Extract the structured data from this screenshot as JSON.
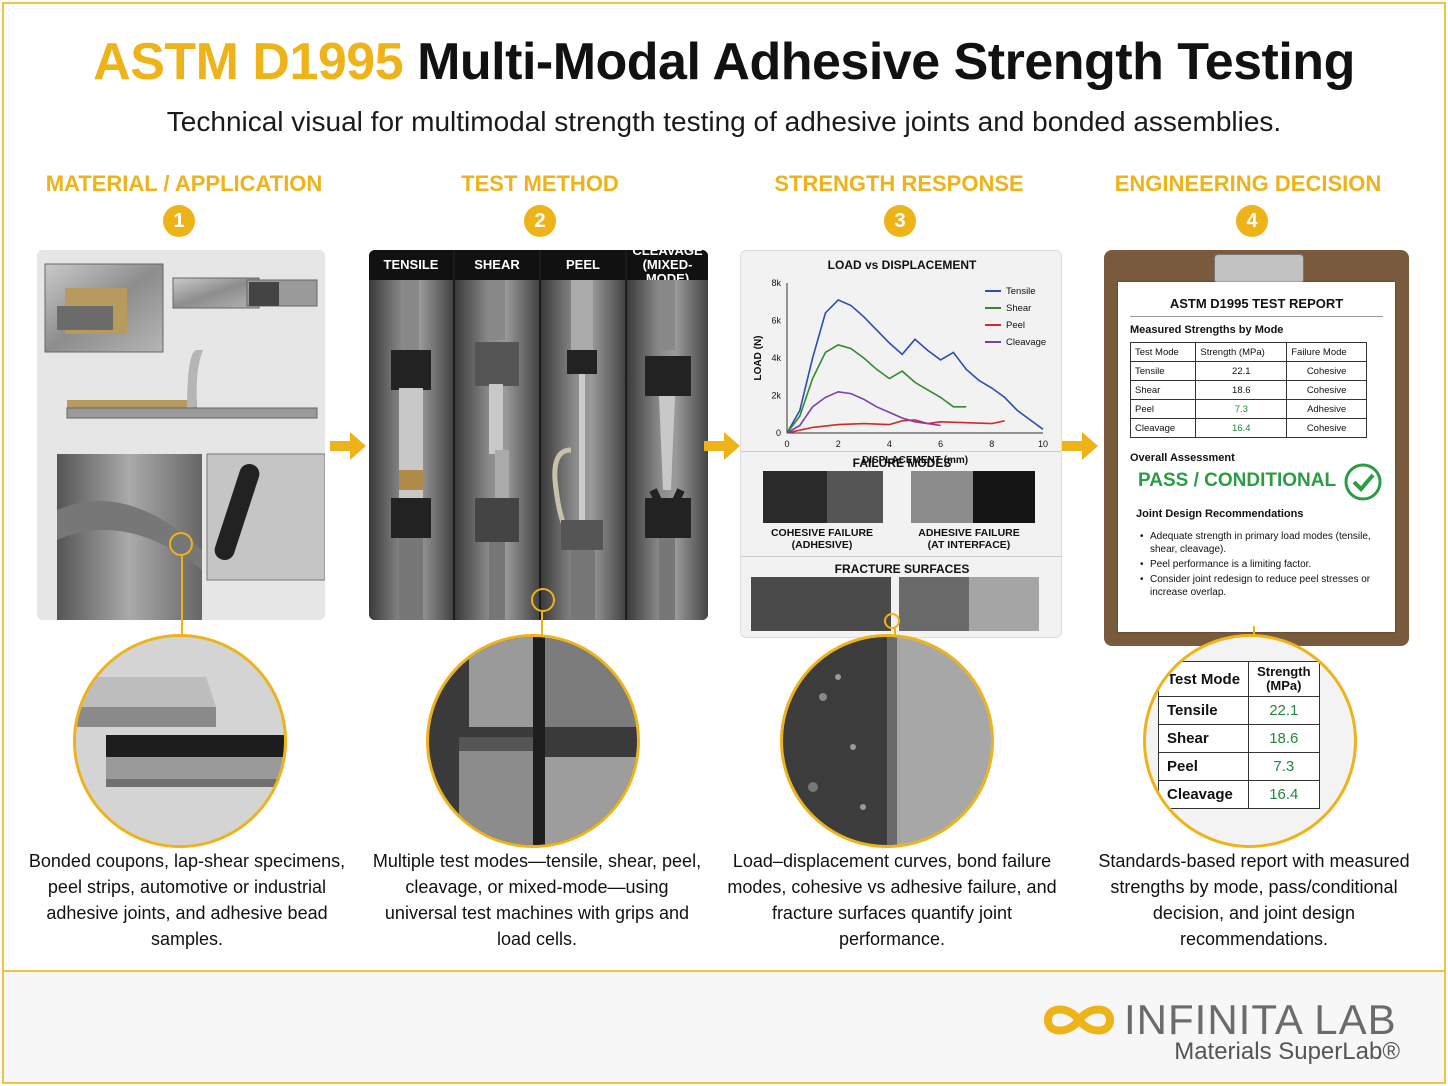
{
  "header": {
    "title_accent": "ASTM D1995",
    "title_main": "Multi-Modal Adhesive Strength Testing",
    "subtitle": "Technical visual for multimodal strength testing of adhesive joints and bonded assemblies."
  },
  "steps": [
    {
      "number": "1",
      "heading": "MATERIAL / APPLICATION",
      "description": "Bonded coupons, lap-shear specimens, peel strips, automotive or industrial adhesive joints, and adhesive bead samples."
    },
    {
      "number": "2",
      "heading": "TEST METHOD",
      "description": "Multiple test modes—tensile, shear, peel, cleavage, or mixed-mode—using universal test machines with grips and load cells."
    },
    {
      "number": "3",
      "heading": "STRENGTH RESPONSE",
      "description": "Load–displacement curves, bond failure modes, cohesive vs adhesive failure, and fracture surfaces quantify joint performance."
    },
    {
      "number": "4",
      "heading": "ENGINEERING DECISION",
      "description": "Standards-based report with measured strengths by mode, pass/conditional decision, and joint design recommendations."
    }
  ],
  "test_modes": {
    "tensile": "TENSILE",
    "shear": "SHEAR",
    "peel": "PEEL",
    "cleavage_line1": "CLEAVAGE",
    "cleavage_line2": "(MIXED-MODE)"
  },
  "chart_data": {
    "type": "line",
    "title": "LOAD vs DISPLACEMENT",
    "xlabel": "DISPLACEMENT (mm)",
    "ylabel": "LOAD (N)",
    "xlim": [
      0,
      10
    ],
    "ylim": [
      0,
      8000
    ],
    "x_ticks": [
      "0",
      "2",
      "4",
      "6",
      "8",
      "10"
    ],
    "y_ticks": [
      "0",
      "2k",
      "4k",
      "6k",
      "8k"
    ],
    "legend_position": "top-right",
    "series": [
      {
        "name": "Tensile",
        "color": "#2a4fb0",
        "x": [
          0,
          0.5,
          1.0,
          1.5,
          2.0,
          2.5,
          3.0,
          3.5,
          4.0,
          4.5,
          5.0,
          5.5,
          6.0,
          6.5,
          7.0,
          7.5,
          8.0,
          8.5,
          9.0,
          9.5,
          10.0
        ],
        "y": [
          0,
          1200,
          4000,
          6400,
          7100,
          6800,
          6200,
          5500,
          4800,
          4200,
          5000,
          4400,
          3900,
          4300,
          3400,
          2800,
          2400,
          1900,
          1200,
          700,
          200
        ]
      },
      {
        "name": "Shear",
        "color": "#2e8b2e",
        "x": [
          0,
          0.5,
          1.0,
          1.5,
          2.0,
          2.5,
          3.0,
          3.5,
          4.0,
          4.5,
          5.0,
          5.5,
          6.0,
          6.5,
          7.0
        ],
        "y": [
          0,
          900,
          2900,
          4300,
          4700,
          4500,
          4000,
          3400,
          2900,
          3300,
          2700,
          2300,
          1900,
          1400,
          1400
        ]
      },
      {
        "name": "Peel",
        "color": "#d12a2a",
        "x": [
          0,
          0.5,
          1.0,
          2.0,
          3.0,
          4.0,
          4.5,
          5.0,
          5.5,
          6.0,
          7.0,
          8.0,
          8.5
        ],
        "y": [
          0,
          150,
          300,
          450,
          500,
          450,
          650,
          700,
          500,
          600,
          550,
          500,
          650
        ]
      },
      {
        "name": "Cleavage",
        "color": "#7b3fb0",
        "x": [
          0,
          0.5,
          1.0,
          1.5,
          2.0,
          2.5,
          3.0,
          3.5,
          4.0,
          4.5,
          5.0,
          5.5,
          6.0
        ],
        "y": [
          0,
          400,
          1400,
          1900,
          2200,
          2100,
          1800,
          1400,
          1100,
          800,
          600,
          500,
          400
        ]
      }
    ]
  },
  "failure_modes": {
    "title": "FAILURE MODES",
    "cohesive_line1": "COHESIVE FAILURE",
    "cohesive_line2": "(ADHESIVE)",
    "adhesive_line1": "ADHESIVE FAILURE",
    "adhesive_line2": "(AT INTERFACE)",
    "fracture_title": "FRACTURE SURFACES"
  },
  "report": {
    "title": "ASTM D1995 TEST REPORT",
    "measured_heading": "Measured Strengths by Mode",
    "columns": [
      "Test Mode",
      "Strength (MPa)",
      "Failure Mode"
    ],
    "rows": [
      {
        "mode": "Tensile",
        "strength": "22.1",
        "failure": "Cohesive"
      },
      {
        "mode": "Shear",
        "strength": "18.6",
        "failure": "Cohesive"
      },
      {
        "mode": "Peel",
        "strength": "7.3",
        "failure": "Adhesive"
      },
      {
        "mode": "Cleavage",
        "strength": "16.4",
        "failure": "Cohesive"
      }
    ],
    "assessment_label": "Overall Assessment",
    "assessment_value": "PASS / CONDITIONAL",
    "recommendations_heading": "Joint Design Recommendations",
    "recommendations": [
      "Adequate strength in primary load modes (tensile, shear, cleavage).",
      "Peel performance is a limiting factor.",
      "Consider joint redesign to reduce peel stresses or increase overlap."
    ]
  },
  "zoom_table": {
    "col_mode": "Test Mode",
    "col_strength_line1": "Strength",
    "col_strength_line2": "(MPa)",
    "rows": [
      {
        "mode": "Tensile",
        "strength": "22.1"
      },
      {
        "mode": "Shear",
        "strength": "18.6"
      },
      {
        "mode": "Peel",
        "strength": "7.3"
      },
      {
        "mode": "Cleavage",
        "strength": "16.4"
      }
    ]
  },
  "brand": {
    "name": "INFINITA LAB",
    "tagline": "Materials SuperLab®"
  },
  "colors": {
    "accent": "#efb31a",
    "pass_green": "#2a9d44"
  }
}
